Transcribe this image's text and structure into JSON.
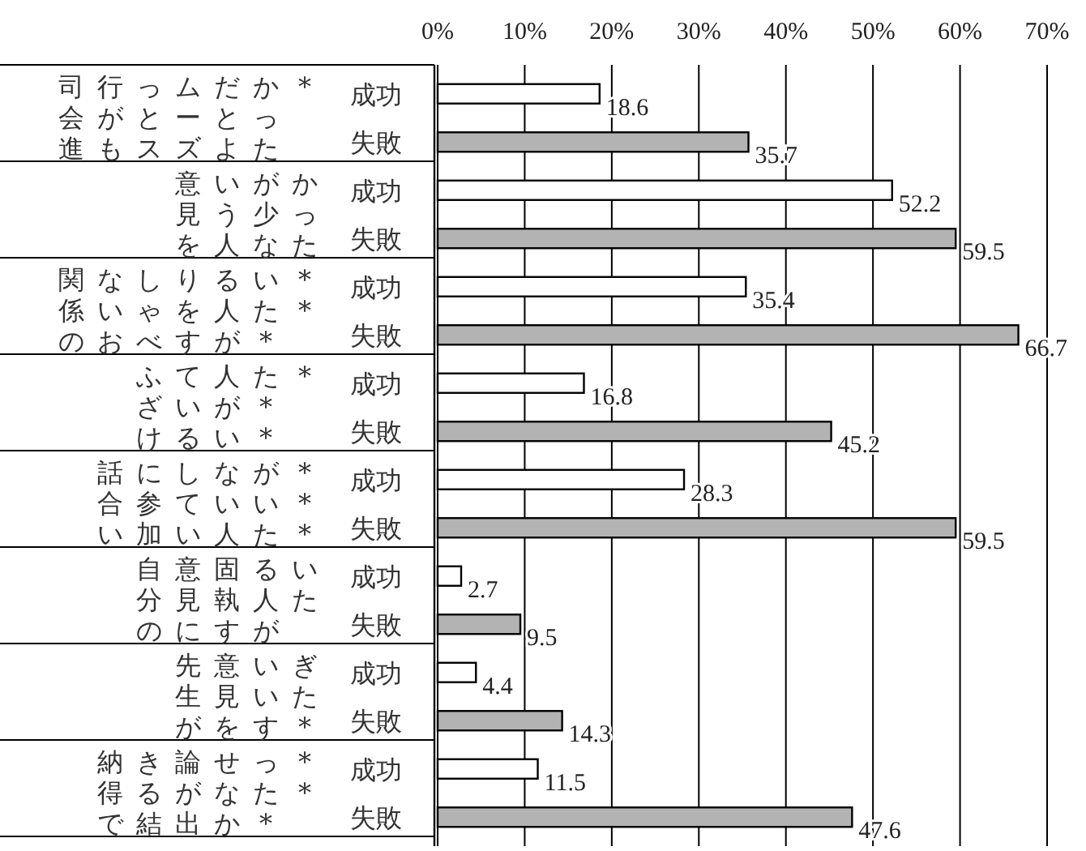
{
  "chart_data": {
    "type": "bar",
    "orientation": "horizontal",
    "categories": [
      "成功",
      "失敗",
      "成功",
      "失敗",
      "成功",
      "失敗",
      "成功",
      "失敗",
      "成功",
      "失敗",
      "成功",
      "失敗",
      "成功",
      "失敗",
      "成功",
      "失敗"
    ],
    "values": [
      18.6,
      35.7,
      52.2,
      59.5,
      35.4,
      66.7,
      16.8,
      45.2,
      28.3,
      59.5,
      2.7,
      9.5,
      4.4,
      14.3,
      11.5,
      47.6
    ],
    "colors": [
      "#ffffff",
      "#b3b3b3",
      "#ffffff",
      "#b3b3b3",
      "#ffffff",
      "#b3b3b3",
      "#ffffff",
      "#b3b3b3",
      "#ffffff",
      "#b3b3b3",
      "#ffffff",
      "#b3b3b3",
      "#ffffff",
      "#b3b3b3",
      "#ffffff",
      "#b3b3b3"
    ],
    "xlim": [
      0,
      70
    ],
    "xticks": [
      {
        "value": 0,
        "label": "0%"
      },
      {
        "value": 10,
        "label": "10%"
      },
      {
        "value": 20,
        "label": "20%"
      },
      {
        "value": 30,
        "label": "30%"
      },
      {
        "value": 40,
        "label": "40%"
      },
      {
        "value": 50,
        "label": "50%"
      },
      {
        "value": 60,
        "label": "60%"
      },
      {
        "value": 70,
        "label": "70%"
      }
    ],
    "grid": "x",
    "data_labels": true,
    "annotations": [
      "司会進行がもっとスムーズだとよかった*",
      "意見をいう人が少なかった",
      "関係のないおしゃべりをする人がいた***",
      "ふざけている人がいた***",
      "話合いに参加していない人がいた***",
      "自分の意見に固執する人がいた",
      "先生が意見をいいすぎた*",
      "納得できる結論が出せなかった***"
    ]
  }
}
